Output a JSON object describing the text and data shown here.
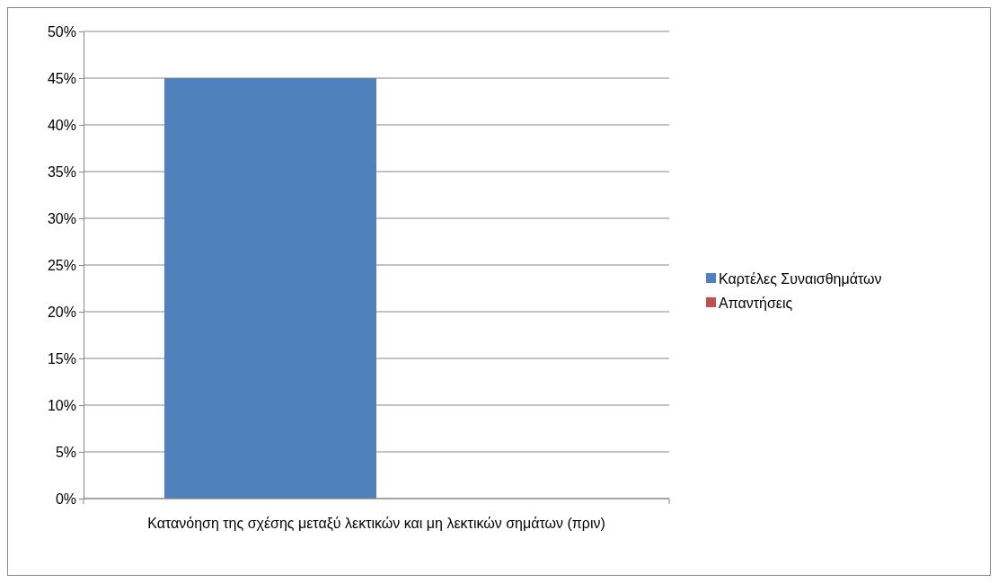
{
  "chart_data": {
    "type": "bar",
    "categories": [
      "Κατανόηση της σχέσης μεταξύ λεκτικών και μη λεκτικών σημάτων (πριν)"
    ],
    "series": [
      {
        "name": "Καρτέλες Συναισθημάτων",
        "color": "#4f81bd",
        "values": [
          45
        ]
      },
      {
        "name": "Απαντήσεις",
        "color": "#c0504d",
        "values": [
          0
        ]
      }
    ],
    "ylim": [
      0,
      50
    ],
    "yticks": [
      {
        "value": 0,
        "label": "0%"
      },
      {
        "value": 5,
        "label": "5%"
      },
      {
        "value": 10,
        "label": "10%"
      },
      {
        "value": 15,
        "label": "15%"
      },
      {
        "value": 20,
        "label": "20%"
      },
      {
        "value": 25,
        "label": "25%"
      },
      {
        "value": 30,
        "label": "30%"
      },
      {
        "value": 35,
        "label": "35%"
      },
      {
        "value": 40,
        "label": "40%"
      },
      {
        "value": 45,
        "label": "45%"
      },
      {
        "value": 50,
        "label": "50%"
      }
    ],
    "grid": "y",
    "legend": "right"
  }
}
